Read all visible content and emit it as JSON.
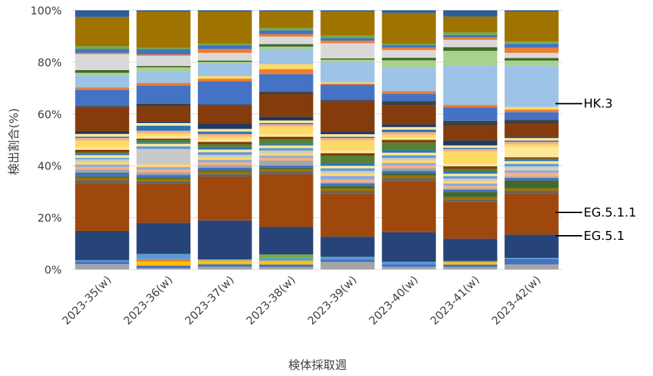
{
  "chart_data": {
    "type": "bar",
    "stacked": true,
    "normalized": true,
    "xlabel": "検体採取週",
    "ylabel": "検出割合(%)",
    "ylim": [
      0,
      100
    ],
    "y_ticks": [
      "0%",
      "20%",
      "40%",
      "60%",
      "80%",
      "100%"
    ],
    "categories": [
      "2023-35(w)",
      "2023-36(w)",
      "2023-37(w)",
      "2023-38(w)",
      "2023-39(w)",
      "2023-40(w)",
      "2023-41(w)",
      "2023-42(w)"
    ],
    "grid": true,
    "legend": "none",
    "series": [
      {
        "color": "#a5a5a5",
        "values": [
          2,
          0.5,
          1,
          1,
          3,
          1,
          1,
          2
        ]
      },
      {
        "color": "#4472c4",
        "values": [
          1,
          1,
          1,
          1,
          1,
          1,
          1,
          2
        ]
      },
      {
        "color": "#ffc000",
        "values": [
          0,
          1.5,
          1.5,
          1.5,
          0,
          0,
          1,
          0
        ]
      },
      {
        "color": "#ed7d31",
        "values": [
          0,
          1,
          0,
          0,
          0,
          0,
          0,
          0
        ]
      },
      {
        "color": "#5b9bd5",
        "values": [
          0.5,
          2,
          0.5,
          1,
          1,
          1,
          0.5,
          0.5
        ]
      },
      {
        "color": "#70ad47",
        "values": [
          0,
          0,
          0,
          1.5,
          0,
          0,
          0,
          0
        ]
      },
      {
        "color": "#264478",
        "values": [
          11,
          12,
          15,
          11,
          8,
          11.5,
          9,
          9
        ]
      },
      {
        "color": "#9e480e",
        "values": [
          18,
          15,
          17,
          21,
          17,
          20,
          15,
          16
        ]
      },
      {
        "color": "#636363",
        "values": [
          1,
          1,
          1,
          1,
          1,
          1,
          1,
          1
        ]
      },
      {
        "color": "#997300",
        "values": [
          1,
          1,
          1,
          1,
          1,
          1,
          1,
          1
        ]
      },
      {
        "color": "#43682b",
        "values": [
          0.5,
          0.5,
          0.5,
          0.5,
          1,
          1,
          2,
          3
        ]
      },
      {
        "color": "#4472c4",
        "values": [
          1.5,
          1,
          1,
          1,
          1,
          1,
          1,
          1
        ]
      },
      {
        "color": "#a5a5a5",
        "values": [
          1,
          1,
          1,
          2,
          0.5,
          1,
          0.5,
          0.5
        ]
      },
      {
        "color": "#f4b183",
        "values": [
          1,
          1,
          1,
          1,
          1,
          1,
          1,
          1.5
        ]
      },
      {
        "color": "#8faadc",
        "values": [
          1,
          1,
          1,
          1,
          1.5,
          1,
          1,
          1
        ]
      },
      {
        "color": "#ffd966",
        "values": [
          1,
          1,
          1,
          1,
          1,
          1,
          1,
          0.5
        ]
      },
      {
        "color": "#c9c9c9",
        "values": [
          1,
          6,
          1,
          1,
          1,
          1,
          1,
          1
        ]
      },
      {
        "color": "#5b9bd5",
        "values": [
          0.5,
          1,
          1,
          1,
          1,
          1,
          1,
          1
        ]
      },
      {
        "color": "#ffe699",
        "values": [
          1,
          1,
          1,
          1,
          1,
          1,
          1,
          1
        ]
      },
      {
        "color": "#2e75b6",
        "values": [
          0.5,
          0.5,
          1,
          0.5,
          1,
          1,
          1,
          0.5
        ]
      },
      {
        "color": "#548235",
        "values": [
          0.5,
          1,
          1,
          2,
          3,
          3,
          1,
          0.5
        ]
      },
      {
        "color": "#843c0c",
        "values": [
          1,
          0.5,
          1,
          1,
          1,
          1,
          1,
          0.5
        ]
      },
      {
        "color": "#ffe699",
        "values": [
          1,
          1,
          1,
          1,
          1,
          1,
          1,
          4
        ]
      },
      {
        "color": "#ffd966",
        "values": [
          2.5,
          1,
          1,
          3,
          4,
          1,
          5,
          1
        ]
      },
      {
        "color": "#f4b183",
        "values": [
          1,
          1,
          1,
          1,
          1,
          1,
          1,
          1
        ]
      },
      {
        "color": "#2e75b6",
        "values": [
          0.5,
          2,
          1,
          0.5,
          0.5,
          1,
          0.5,
          0.5
        ]
      },
      {
        "color": "#ffe699",
        "values": [
          1,
          1,
          1,
          1,
          1,
          1,
          1,
          1
        ]
      },
      {
        "color": "#203864",
        "values": [
          1,
          0.5,
          2,
          1.5,
          1,
          1,
          2,
          0.5
        ]
      },
      {
        "color": "#843c0c",
        "values": [
          9,
          6,
          7,
          9,
          12,
          7.5,
          6,
          5
        ]
      },
      {
        "color": "#404040",
        "values": [
          0.5,
          1,
          0.5,
          1,
          0.5,
          1.5,
          2,
          1.5
        ]
      },
      {
        "color": "#4472c4",
        "values": [
          6,
          7,
          9,
          7,
          6,
          3,
          5.5,
          3
        ]
      },
      {
        "color": "#ed7d31",
        "values": [
          1,
          1,
          1,
          2,
          0.5,
          1,
          1,
          1
        ]
      },
      {
        "color": "#ffd966",
        "values": [
          0,
          0,
          1,
          2,
          0.5,
          0,
          0,
          1
        ]
      },
      {
        "color": "#9dc3e6",
        "values": [
          4.5,
          4.5,
          5,
          6,
          8,
          9,
          16,
          16
        ]
      },
      {
        "color": "#a9d18e",
        "values": [
          1,
          1.5,
          0.5,
          1,
          1,
          3,
          6,
          2
        ]
      },
      {
        "color": "#43682b",
        "values": [
          1,
          0.5,
          0.5,
          1,
          0.5,
          1,
          1.5,
          1
        ]
      },
      {
        "color": "#d9d9d9",
        "values": [
          6,
          4,
          3,
          3,
          6,
          3,
          3,
          2
        ]
      },
      {
        "color": "#ed7d31",
        "values": [
          0.5,
          0.5,
          1.5,
          1,
          1,
          1,
          1,
          2
        ]
      },
      {
        "color": "#4472c4",
        "values": [
          1.5,
          2,
          1.5,
          1.5,
          1,
          1,
          1,
          1.5
        ]
      },
      {
        "color": "#70ad47",
        "values": [
          1,
          0.5,
          0.5,
          1,
          1,
          0.5,
          1,
          1
        ]
      },
      {
        "color": "#9e7300",
        "values": [
          11,
          14,
          12.5,
          6.5,
          9.5,
          12,
          6.5,
          11.5
        ]
      },
      {
        "color": "#2e5d9b",
        "values": [
          2.5,
          0.5,
          0.5,
          0.5,
          0.5,
          1,
          2.5,
          0.5
        ]
      }
    ],
    "annotations": [
      {
        "text": "HK.3",
        "y": 64
      },
      {
        "text": "EG.5.1.1",
        "y": 22
      },
      {
        "text": "EG.5.1",
        "y": 13
      }
    ]
  }
}
